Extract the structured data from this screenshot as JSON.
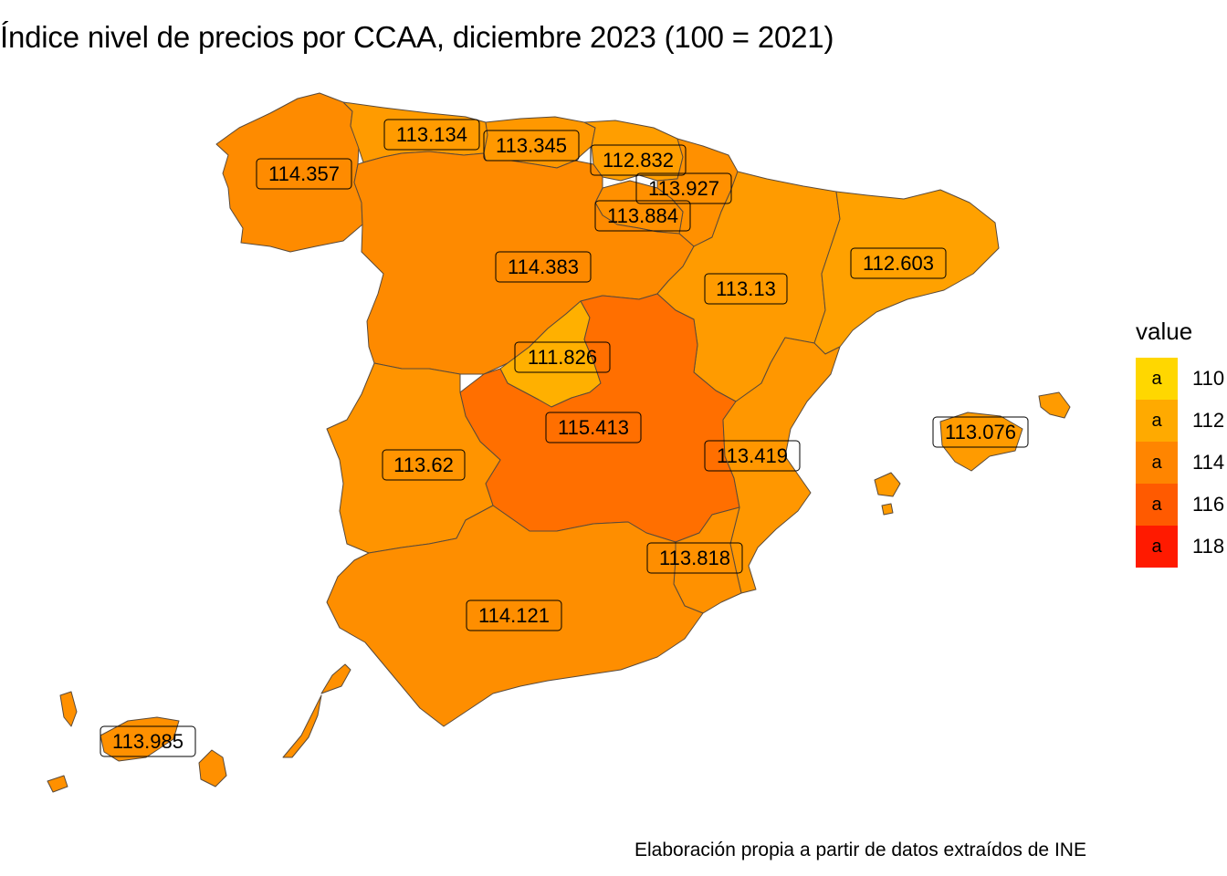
{
  "title": "Índice nivel de precios por CCAA, diciembre 2023 (100 = 2021)",
  "caption": "Elaboración propia a partir de datos extraídos de INE",
  "legend": {
    "title": "value",
    "key_glyph": "a",
    "items": [
      {
        "value": "110",
        "color": "#FFD700"
      },
      {
        "value": "112",
        "color": "#FFAA00"
      },
      {
        "value": "114",
        "color": "#FF8500"
      },
      {
        "value": "116",
        "color": "#FF5A00"
      },
      {
        "value": "118",
        "color": "#FF1A00"
      }
    ]
  },
  "regions": [
    {
      "id": "galicia",
      "value": 114.357,
      "label": "114.357",
      "color": "#FE8B00"
    },
    {
      "id": "asturias",
      "value": 113.134,
      "label": "113.134",
      "color": "#FF9B00"
    },
    {
      "id": "cantabria",
      "value": 113.345,
      "label": "113.345",
      "color": "#FF9800"
    },
    {
      "id": "pais-vasco",
      "value": 112.832,
      "label": "112.832",
      "color": "#FF9E00"
    },
    {
      "id": "navarra",
      "value": 113.927,
      "label": "113.927",
      "color": "#FF9000"
    },
    {
      "id": "la-rioja",
      "value": 113.884,
      "label": "113.884",
      "color": "#FF9000"
    },
    {
      "id": "castilla-y-leon",
      "value": 114.383,
      "label": "114.383",
      "color": "#FE8A00"
    },
    {
      "id": "aragon",
      "value": 113.13,
      "label": "113.13",
      "color": "#FF9B00"
    },
    {
      "id": "cataluna",
      "value": 112.603,
      "label": "112.603",
      "color": "#FFA100"
    },
    {
      "id": "madrid",
      "value": 111.826,
      "label": "111.826",
      "color": "#FFB000"
    },
    {
      "id": "castilla-la-mancha",
      "value": 115.413,
      "label": "115.413",
      "color": "#FF6F00"
    },
    {
      "id": "extremadura",
      "value": 113.62,
      "label": "113.62",
      "color": "#FF9400"
    },
    {
      "id": "comunitat-valenciana",
      "value": 113.419,
      "label": "113.419",
      "color": "#FF9700"
    },
    {
      "id": "illes-balears",
      "value": 113.076,
      "label": "113.076",
      "color": "#FF9B00"
    },
    {
      "id": "region-de-murcia",
      "value": 113.818,
      "label": "113.818",
      "color": "#FF9100"
    },
    {
      "id": "andalucia",
      "value": 114.121,
      "label": "114.121",
      "color": "#FE8E00"
    },
    {
      "id": "canarias",
      "value": 113.985,
      "label": "113.985",
      "color": "#FF9000"
    }
  ]
}
